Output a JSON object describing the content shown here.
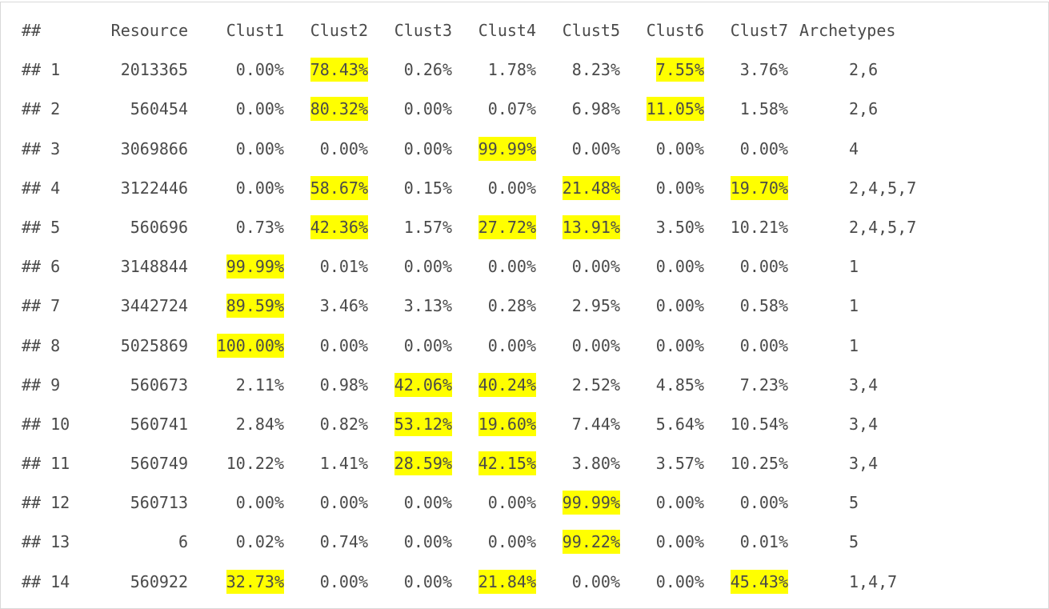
{
  "header": {
    "prefix": "##",
    "resource": "Resource",
    "clusters": [
      "Clust1",
      "Clust2",
      "Clust3",
      "Clust4",
      "Clust5",
      "Clust6",
      "Clust7"
    ],
    "archetypes": "Archetypes"
  },
  "rows": [
    {
      "prefix": "## 1",
      "resource": "2013365",
      "values": [
        "0.00%",
        "78.43%",
        "0.26%",
        "1.78%",
        "8.23%",
        "7.55%",
        "3.76%"
      ],
      "highlight": [
        false,
        true,
        false,
        false,
        false,
        true,
        false
      ],
      "archetypes": "2,6"
    },
    {
      "prefix": "## 2",
      "resource": "560454",
      "values": [
        "0.00%",
        "80.32%",
        "0.00%",
        "0.07%",
        "6.98%",
        "11.05%",
        "1.58%"
      ],
      "highlight": [
        false,
        true,
        false,
        false,
        false,
        true,
        false
      ],
      "archetypes": "2,6"
    },
    {
      "prefix": "## 3",
      "resource": "3069866",
      "values": [
        "0.00%",
        "0.00%",
        "0.00%",
        "99.99%",
        "0.00%",
        "0.00%",
        "0.00%"
      ],
      "highlight": [
        false,
        false,
        false,
        true,
        false,
        false,
        false
      ],
      "archetypes": "4"
    },
    {
      "prefix": "## 4",
      "resource": "3122446",
      "values": [
        "0.00%",
        "58.67%",
        "0.15%",
        "0.00%",
        "21.48%",
        "0.00%",
        "19.70%"
      ],
      "highlight": [
        false,
        true,
        false,
        false,
        true,
        false,
        true
      ],
      "archetypes": "2,4,5,7"
    },
    {
      "prefix": "## 5",
      "resource": "560696",
      "values": [
        "0.73%",
        "42.36%",
        "1.57%",
        "27.72%",
        "13.91%",
        "3.50%",
        "10.21%"
      ],
      "highlight": [
        false,
        true,
        false,
        true,
        true,
        false,
        false
      ],
      "archetypes": "2,4,5,7"
    },
    {
      "prefix": "## 6",
      "resource": "3148844",
      "values": [
        "99.99%",
        "0.01%",
        "0.00%",
        "0.00%",
        "0.00%",
        "0.00%",
        "0.00%"
      ],
      "highlight": [
        true,
        false,
        false,
        false,
        false,
        false,
        false
      ],
      "archetypes": "1"
    },
    {
      "prefix": "## 7",
      "resource": "3442724",
      "values": [
        "89.59%",
        "3.46%",
        "3.13%",
        "0.28%",
        "2.95%",
        "0.00%",
        "0.58%"
      ],
      "highlight": [
        true,
        false,
        false,
        false,
        false,
        false,
        false
      ],
      "archetypes": "1"
    },
    {
      "prefix": "## 8",
      "resource": "5025869",
      "values": [
        "100.00%",
        "0.00%",
        "0.00%",
        "0.00%",
        "0.00%",
        "0.00%",
        "0.00%"
      ],
      "highlight": [
        true,
        false,
        false,
        false,
        false,
        false,
        false
      ],
      "archetypes": "1"
    },
    {
      "prefix": "## 9",
      "resource": "560673",
      "values": [
        "2.11%",
        "0.98%",
        "42.06%",
        "40.24%",
        "2.52%",
        "4.85%",
        "7.23%"
      ],
      "highlight": [
        false,
        false,
        true,
        true,
        false,
        false,
        false
      ],
      "archetypes": "3,4"
    },
    {
      "prefix": "## 10",
      "resource": "560741",
      "values": [
        "2.84%",
        "0.82%",
        "53.12%",
        "19.60%",
        "7.44%",
        "5.64%",
        "10.54%"
      ],
      "highlight": [
        false,
        false,
        true,
        true,
        false,
        false,
        false
      ],
      "archetypes": "3,4"
    },
    {
      "prefix": "## 11",
      "resource": "560749",
      "values": [
        "10.22%",
        "1.41%",
        "28.59%",
        "42.15%",
        "3.80%",
        "3.57%",
        "10.25%"
      ],
      "highlight": [
        false,
        false,
        true,
        true,
        false,
        false,
        false
      ],
      "archetypes": "3,4"
    },
    {
      "prefix": "## 12",
      "resource": "560713",
      "values": [
        "0.00%",
        "0.00%",
        "0.00%",
        "0.00%",
        "99.99%",
        "0.00%",
        "0.00%"
      ],
      "highlight": [
        false,
        false,
        false,
        false,
        true,
        false,
        false
      ],
      "archetypes": "5"
    },
    {
      "prefix": "## 13",
      "resource": "6",
      "values": [
        "0.02%",
        "0.74%",
        "0.00%",
        "0.00%",
        "99.22%",
        "0.00%",
        "0.01%"
      ],
      "highlight": [
        false,
        false,
        false,
        false,
        true,
        false,
        false
      ],
      "archetypes": "5"
    },
    {
      "prefix": "## 14",
      "resource": "560922",
      "values": [
        "32.73%",
        "0.00%",
        "0.00%",
        "21.84%",
        "0.00%",
        "0.00%",
        "45.43%"
      ],
      "highlight": [
        true,
        false,
        false,
        true,
        false,
        false,
        true
      ],
      "archetypes": "1,4,7"
    }
  ],
  "colors": {
    "highlight": "#ffff00",
    "text": "#4a4a4a",
    "border": "#d9d9d9"
  }
}
